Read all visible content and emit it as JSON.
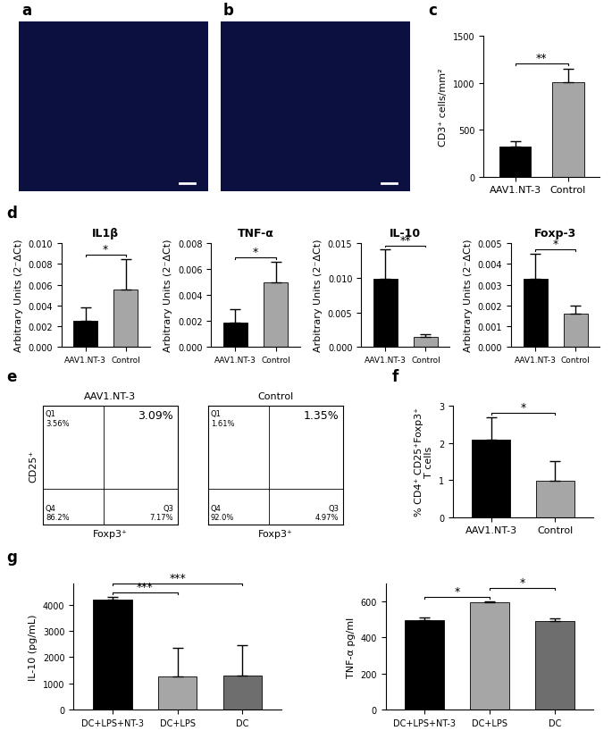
{
  "images": [
    {
      "panel": "a"
    },
    {
      "panel": "b"
    }
  ],
  "flow_cytometry": {
    "panel": "e",
    "x_label": "Foxp3⁺",
    "y_label": "CD25⁺",
    "plots": [
      {
        "title": "AAV1.NT-3",
        "top_left": {
          "label": "Q1",
          "value": "3.56%"
        },
        "top_right": {
          "label": null,
          "value": "3.09%"
        },
        "bottom_left": {
          "label": "Q4",
          "value": "86.2%"
        },
        "bottom_right": {
          "label": "Q3",
          "value": "7.17%"
        }
      },
      {
        "title": "Control",
        "top_left": {
          "label": "Q1",
          "value": "1.61%"
        },
        "top_right": {
          "label": null,
          "value": "1.35%"
        },
        "bottom_left": {
          "label": "Q4",
          "value": "92.0%"
        },
        "bottom_right": {
          "label": "Q3",
          "value": "4.97%"
        }
      }
    ]
  },
  "chart_data": [
    {
      "panel": "c",
      "type": "bar",
      "y_label": "CD3⁺ cells/mm²",
      "categories": [
        "AAV1.NT-3",
        "Control"
      ],
      "values": [
        320,
        1010
      ],
      "errors": [
        60,
        140
      ],
      "colors": [
        "#000000",
        "#a6a6a6"
      ],
      "ylim": [
        0,
        1500
      ],
      "yticks": [
        0,
        500,
        1000,
        1500
      ],
      "significance": [
        {
          "between": [
            "AAV1.NT-3",
            "Control"
          ],
          "label": "**"
        }
      ]
    },
    {
      "panel": "d",
      "type": "bar",
      "title": "IL1β",
      "y_label": "Arbitrary Units (2⁻ΔCt)",
      "categories": [
        "AAV1.NT-3",
        "Control"
      ],
      "values": [
        0.0025,
        0.0055
      ],
      "errors": [
        0.0013,
        0.003
      ],
      "colors": [
        "#000000",
        "#a6a6a6"
      ],
      "ylim": [
        0,
        0.01
      ],
      "yticks": [
        {
          "value": 0,
          "label": "0.000"
        },
        {
          "value": 0.002,
          "label": "0.002"
        },
        {
          "value": 0.004,
          "label": "0.004"
        },
        {
          "value": 0.006,
          "label": "0.006"
        },
        {
          "value": 0.008,
          "label": "0.008"
        },
        {
          "value": 0.01,
          "label": "0.010"
        }
      ],
      "significance": [
        {
          "between": [
            "AAV1.NT-3",
            "Control"
          ],
          "label": "*"
        }
      ]
    },
    {
      "panel": null,
      "type": "bar",
      "title": "TNF-α",
      "y_label": "Arbitrary Units (2⁻ΔCt)",
      "categories": [
        "AAV1.NT-3",
        "Control"
      ],
      "values": [
        0.0019,
        0.005
      ],
      "errors": [
        0.001,
        0.0016
      ],
      "colors": [
        "#000000",
        "#a6a6a6"
      ],
      "ylim": [
        0,
        0.008
      ],
      "yticks": [
        {
          "value": 0,
          "label": "0.000"
        },
        {
          "value": 0.002,
          "label": "0.002"
        },
        {
          "value": 0.004,
          "label": "0.004"
        },
        {
          "value": 0.006,
          "label": "0.006"
        },
        {
          "value": 0.008,
          "label": "0.008"
        }
      ],
      "significance": [
        {
          "between": [
            "AAV1.NT-3",
            "Control"
          ],
          "label": "*"
        }
      ]
    },
    {
      "panel": null,
      "type": "bar",
      "title": "IL-10",
      "y_label": "Arbitrary Units (2⁻ΔCt)",
      "categories": [
        "AAV1.NT-3",
        "Control"
      ],
      "values": [
        0.0098,
        0.0014
      ],
      "errors": [
        0.0043,
        0.0004
      ],
      "colors": [
        "#000000",
        "#a6a6a6"
      ],
      "ylim": [
        0,
        0.015
      ],
      "yticks": [
        {
          "value": 0,
          "label": "0.000"
        },
        {
          "value": 0.005,
          "label": "0.005"
        },
        {
          "value": 0.01,
          "label": "0.010"
        },
        {
          "value": 0.015,
          "label": "0.015"
        }
      ],
      "significance": [
        {
          "between": [
            "AAV1.NT-3",
            "Control"
          ],
          "label": "**"
        }
      ]
    },
    {
      "panel": null,
      "type": "bar",
      "title": "Foxp-3",
      "y_label": "Arbitrary Units (2⁻ΔCt)",
      "categories": [
        "AAV1.NT-3",
        "Control"
      ],
      "values": [
        0.0033,
        0.0016
      ],
      "errors": [
        0.0012,
        0.0004
      ],
      "colors": [
        "#000000",
        "#a6a6a6"
      ],
      "ylim": [
        0,
        0.005
      ],
      "yticks": [
        {
          "value": 0,
          "label": "0.000"
        },
        {
          "value": 0.001,
          "label": "0.001"
        },
        {
          "value": 0.002,
          "label": "0.002"
        },
        {
          "value": 0.003,
          "label": "0.003"
        },
        {
          "value": 0.004,
          "label": "0.004"
        },
        {
          "value": 0.005,
          "label": "0.005"
        }
      ],
      "significance": [
        {
          "between": [
            "AAV1.NT-3",
            "Control"
          ],
          "label": "*"
        }
      ]
    },
    {
      "panel": "f",
      "type": "bar",
      "y_label": "% CD4⁺ CD25⁺Foxp3⁺\nT cells",
      "categories": [
        "AAV1.NT-3",
        "Control"
      ],
      "values": [
        2.1,
        0.97
      ],
      "errors": [
        0.6,
        0.55
      ],
      "colors": [
        "#000000",
        "#a6a6a6"
      ],
      "ylim": [
        0,
        3
      ],
      "yticks": [
        0,
        1,
        2,
        3
      ],
      "significance": [
        {
          "between": [
            "AAV1.NT-3",
            "Control"
          ],
          "label": "*"
        }
      ]
    },
    {
      "panel": "g",
      "type": "bar",
      "y_label": "IL-10 (pg/mL)",
      "categories": [
        "DC+LPS+NT-3",
        "DC+LPS",
        "DC"
      ],
      "values": [
        4200,
        1250,
        1300
      ],
      "errors": [
        80,
        1100,
        1150
      ],
      "colors": [
        "#000000",
        "#a6a6a6",
        "#6e6e6e"
      ],
      "ylim": [
        0,
        4800
      ],
      "yticks": [
        0,
        1000,
        2000,
        3000,
        4000
      ],
      "significance": [
        {
          "between": [
            "DC+LPS+NT-3",
            "DC+LPS"
          ],
          "label": "***"
        },
        {
          "between": [
            "DC+LPS+NT-3",
            "DC"
          ],
          "label": "***"
        }
      ]
    },
    {
      "panel": null,
      "type": "bar",
      "y_label": "TNF-α pg/ml",
      "categories": [
        "DC+LPS+NT-3",
        "DC+LPS",
        "DC"
      ],
      "values": [
        495,
        595,
        490
      ],
      "errors": [
        15,
        5,
        15
      ],
      "colors": [
        "#000000",
        "#a6a6a6",
        "#6e6e6e"
      ],
      "ylim": [
        0,
        700
      ],
      "yticks": [
        0,
        200,
        400,
        600
      ],
      "significance": [
        {
          "between": [
            "DC+LPS+NT-3",
            "DC+LPS"
          ],
          "label": "*"
        },
        {
          "between": [
            "DC+LPS",
            "DC"
          ],
          "label": "*"
        }
      ]
    }
  ]
}
